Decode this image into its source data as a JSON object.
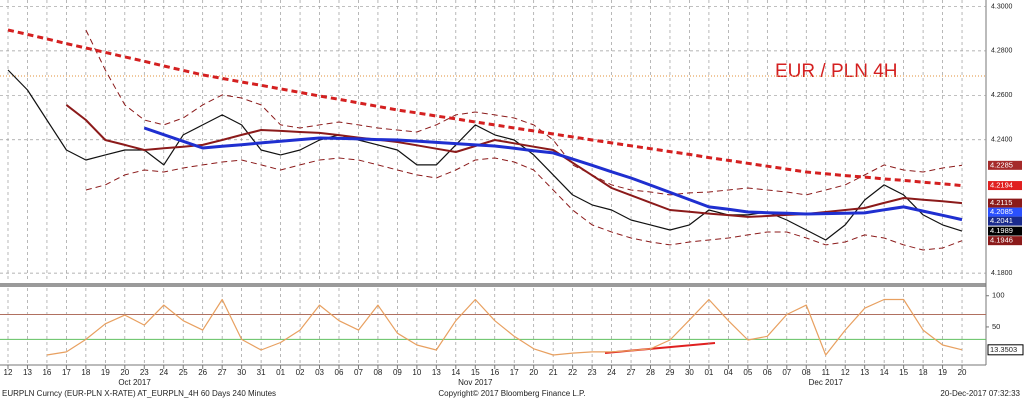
{
  "chart_data": [
    {
      "type": "line",
      "annotation": "EUR / PLN 4H",
      "categories": [
        "12",
        "13",
        "16",
        "17",
        "18",
        "19",
        "20",
        "23",
        "24",
        "25",
        "26",
        "27",
        "30",
        "31",
        "01",
        "02",
        "03",
        "06",
        "07",
        "08",
        "09",
        "10",
        "13",
        "14",
        "15",
        "16",
        "17",
        "20",
        "21",
        "22",
        "23",
        "24",
        "27",
        "28",
        "29",
        "30",
        "01",
        "04",
        "05",
        "06",
        "07",
        "08",
        "11",
        "12",
        "13",
        "14",
        "15",
        "18",
        "19",
        "20"
      ],
      "months": [
        "Oct 2017",
        "Nov 2017",
        "Dec 2017"
      ],
      "ylim": [
        4.176,
        4.3029
      ],
      "yticks": [
        {
          "value": 4.3,
          "label": "4.3000"
        },
        {
          "value": 4.28,
          "label": "4.2800"
        },
        {
          "value": 4.26,
          "label": "4.2600"
        },
        {
          "value": 4.24,
          "label": "4.2400"
        },
        {
          "value": 4.18,
          "label": "4.1800"
        }
      ],
      "grid": true,
      "reference_line": {
        "value": 4.2687,
        "color": "#e8a860"
      },
      "series": [
        {
          "name": "Upper band",
          "color": "#8b1a1a",
          "dash": true,
          "width": 1,
          "values": [
            null,
            null,
            null,
            null,
            4.2894,
            4.2714,
            4.2557,
            4.2489,
            4.2467,
            4.2498,
            4.2557,
            4.2602,
            4.2588,
            4.2557,
            4.2467,
            4.2453,
            4.2467,
            4.248,
            4.2467,
            4.2453,
            4.2444,
            4.2435,
            4.2467,
            4.2512,
            4.2525,
            4.2512,
            4.2498,
            4.2467,
            4.2399,
            4.2287,
            4.2242,
            4.2197,
            4.2174,
            4.2165,
            4.2152,
            4.2161,
            4.2165,
            4.2174,
            4.2183,
            4.2174,
            4.2165,
            4.2152,
            4.2174,
            4.2197,
            4.2242,
            4.2287,
            4.2264,
            4.2255,
            4.2273,
            4.2285
          ]
        },
        {
          "name": "Lower band",
          "color": "#8b1a1a",
          "dash": true,
          "width": 1,
          "values": [
            null,
            null,
            null,
            null,
            4.2174,
            4.2197,
            4.2242,
            4.2264,
            4.2255,
            4.2273,
            4.2287,
            4.23,
            4.2309,
            4.2287,
            4.2264,
            4.2287,
            4.2309,
            4.2318,
            4.2309,
            4.2287,
            4.2264,
            4.2242,
            4.2228,
            4.2264,
            4.2309,
            4.2318,
            4.23,
            4.2264,
            4.2174,
            4.2084,
            4.2017,
            4.1985,
            4.1958,
            4.194,
            4.1927,
            4.194,
            4.1949,
            4.1958,
            4.1972,
            4.1985,
            4.1985,
            4.1958,
            4.1927,
            4.194,
            4.1972,
            4.1958,
            4.1927,
            4.1904,
            4.1913,
            4.1946
          ]
        },
        {
          "name": "Price",
          "color": "#111111",
          "dash": false,
          "width": 1.2,
          "values": [
            4.2714,
            4.2624,
            4.2489,
            4.2354,
            4.2309,
            4.2332,
            4.2354,
            4.2354,
            4.2287,
            4.2422,
            4.2467,
            4.2512,
            4.2467,
            4.2354,
            4.2332,
            4.2354,
            4.2399,
            4.2422,
            4.2399,
            4.2377,
            4.2354,
            4.2287,
            4.2287,
            4.2377,
            4.2467,
            4.2422,
            4.2399,
            4.2332,
            4.2242,
            4.2152,
            4.2107,
            4.2084,
            4.2039,
            4.2017,
            4.1994,
            4.2017,
            4.2084,
            4.2062,
            4.2062,
            4.2075,
            4.2039,
            4.1994,
            4.1949,
            4.2017,
            4.2129,
            4.2197,
            4.2152,
            4.2062,
            4.2017,
            4.1989
          ]
        },
        {
          "name": "MA dark red",
          "color": "#8b1a1a",
          "dash": false,
          "width": 2,
          "values": [
            null,
            null,
            null,
            4.2557,
            4.2489,
            4.2399,
            4.2377,
            4.2354,
            4.2362,
            4.2369,
            4.2377,
            4.2399,
            4.2422,
            4.2444,
            4.244,
            4.2435,
            4.2431,
            4.2421,
            4.241,
            4.24,
            4.239,
            4.2375,
            4.236,
            4.2345,
            4.2372,
            4.2399,
            4.2384,
            4.2369,
            4.2354,
            4.2297,
            4.224,
            4.2183,
            4.215,
            4.2117,
            4.2084,
            4.2076,
            4.2068,
            4.2061,
            4.2053,
            4.2057,
            4.2062,
            4.2066,
            4.2075,
            4.2084,
            4.2093,
            4.2116,
            4.2138,
            4.213,
            4.2123,
            4.2115
          ]
        },
        {
          "name": "MA blue",
          "color": "#1f2fd0",
          "dash": false,
          "width": 3,
          "values": [
            null,
            null,
            null,
            null,
            null,
            null,
            null,
            4.2453,
            4.2423,
            4.2393,
            4.2363,
            4.2371,
            4.2378,
            4.2386,
            4.2393,
            4.2401,
            4.2408,
            4.2406,
            4.2404,
            4.2401,
            4.2399,
            4.2394,
            4.2388,
            4.2383,
            4.2377,
            4.2372,
            4.2362,
            4.2351,
            4.2341,
            4.2313,
            4.2285,
            4.2256,
            4.2228,
            4.2196,
            4.2163,
            4.2131,
            4.2098,
            4.2087,
            4.2075,
            4.2072,
            4.2069,
            4.2066,
            4.2068,
            4.2069,
            4.2071,
            4.2085,
            4.2098,
            4.2079,
            4.206,
            4.2041
          ]
        },
        {
          "name": "MA 200",
          "color": "#d42020",
          "dash": true,
          "width": 3,
          "values": [
            4.2894,
            4.2874,
            4.2854,
            4.2833,
            4.2813,
            4.2793,
            4.2773,
            4.2753,
            4.2732,
            4.2712,
            4.2692,
            4.2676,
            4.266,
            4.2645,
            4.2629,
            4.2613,
            4.2597,
            4.2582,
            4.2566,
            4.255,
            4.2534,
            4.2521,
            4.2507,
            4.2494,
            4.248,
            4.2467,
            4.2453,
            4.244,
            4.2426,
            4.2413,
            4.2399,
            4.2386,
            4.2373,
            4.236,
            4.2347,
            4.2334,
            4.232,
            4.2307,
            4.2294,
            4.2281,
            4.2268,
            4.2255,
            4.2247,
            4.2239,
            4.2232,
            4.2224,
            4.2217,
            4.2209,
            4.2202,
            4.2194
          ]
        }
      ],
      "price_tags": [
        {
          "value": 4.2285,
          "color": "#a52a2a"
        },
        {
          "value": 4.2194,
          "color": "#e02020"
        },
        {
          "value": 4.2115,
          "color": "#8b1a1a"
        },
        {
          "value": 4.2085,
          "color": "#2a50ff"
        },
        {
          "value": 4.2041,
          "color": "#1a2a8c"
        },
        {
          "value": 4.1989,
          "color": "#000000"
        },
        {
          "value": 4.1946,
          "color": "#8b1a1a"
        }
      ]
    },
    {
      "type": "line",
      "color": "#e8a060",
      "ylim": [
        -11,
        114
      ],
      "yticks": [
        50,
        100
      ],
      "reference_lines": [
        {
          "value": 70,
          "color": "#b07060"
        },
        {
          "value": 30,
          "color": "#60c060"
        }
      ],
      "values": [
        null,
        null,
        5,
        10,
        30,
        55,
        69,
        53,
        85,
        60,
        45,
        94,
        30,
        13,
        25,
        45,
        85,
        60,
        45,
        85,
        40,
        21,
        13,
        60,
        94,
        60,
        35,
        15,
        5,
        8,
        10,
        10,
        12,
        15,
        29,
        61,
        94,
        60,
        29,
        35,
        70,
        85,
        5,
        45,
        80,
        94,
        94,
        45,
        21,
        13.3503
      ]
    }
  ],
  "footer": {
    "left": "EURPLN Curncy (EUR-PLN X-RATE) AT_EURPLN_4H 60 Days 240 Minutes",
    "center": "Copyright© 2017 Bloomberg Finance L.P.",
    "right": "20-Dec-2017 07:32:33"
  }
}
